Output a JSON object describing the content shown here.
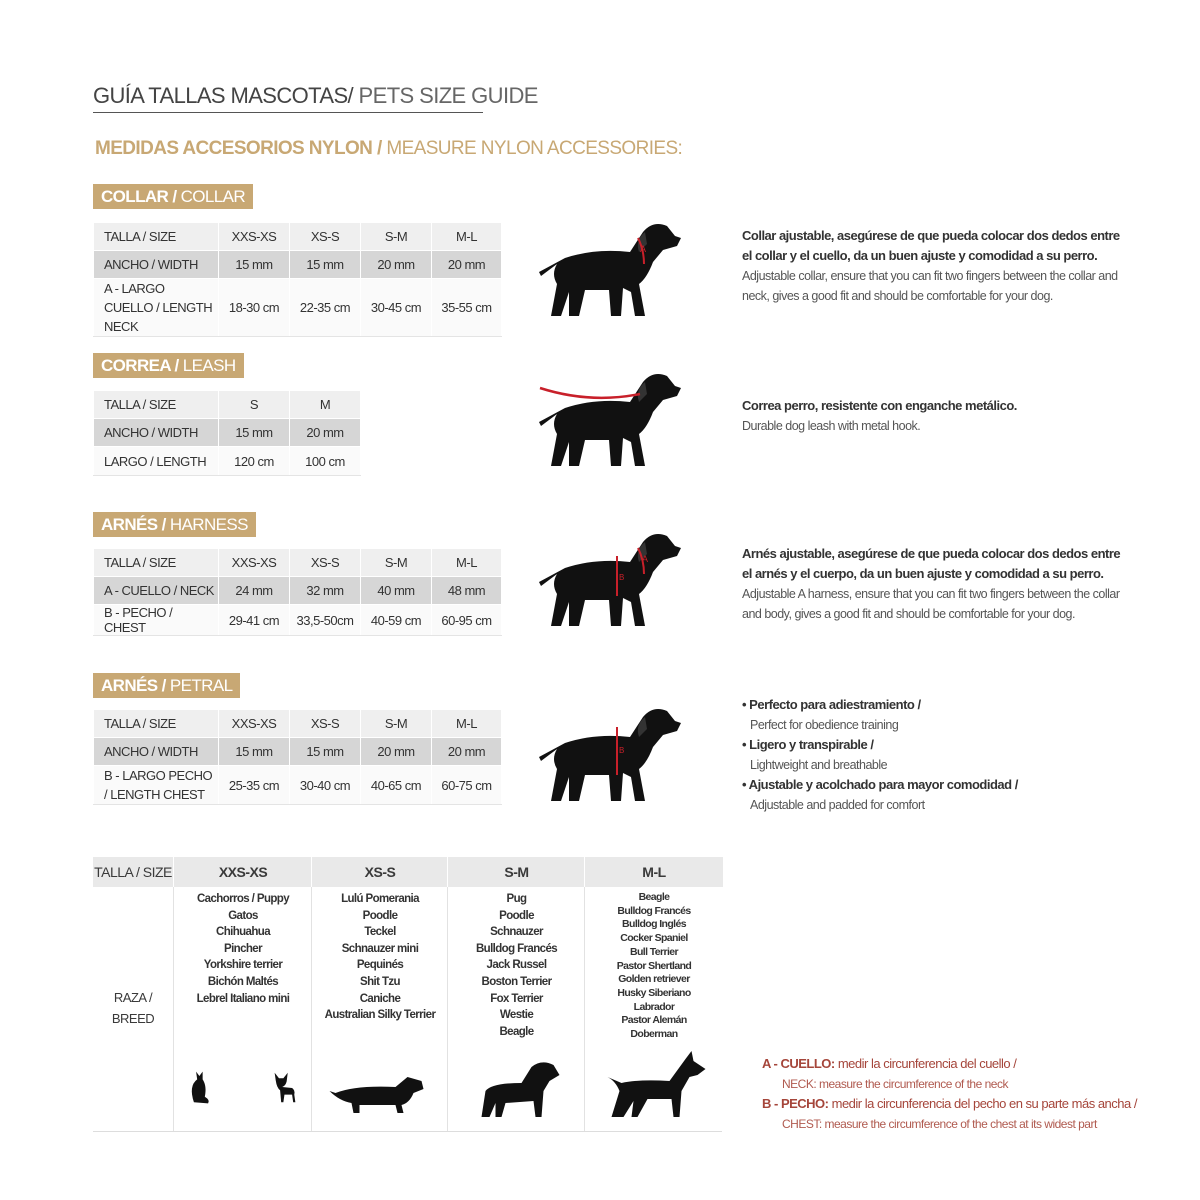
{
  "title": {
    "es": "GUÍA TALLAS MASCOTAS/",
    "en": " PETS SIZE GUIDE"
  },
  "subtitle": {
    "es": "MEDIDAS ACCESORIOS NYLON /",
    "en": " MEASURE NYLON ACCESSORIES:"
  },
  "colors": {
    "gold": "#c8a874",
    "red": "#a5453a",
    "silhouette": "#111111",
    "marker": "#c8202a"
  },
  "sections": [
    {
      "badge_es": "COLLAR /",
      "badge_en": " COLLAR",
      "rows": [
        [
          "TALLA / SIZE",
          "XXS-XS",
          "XS-S",
          "S-M",
          "M-L"
        ],
        [
          "ANCHO / WIDTH",
          "15 mm",
          "15 mm",
          "20 mm",
          "20 mm"
        ],
        [
          "A - LARGO CUELLO / LENGTH NECK",
          "18-30 cm",
          "22-35 cm",
          "30-45 cm",
          "35-55 cm"
        ]
      ],
      "description": {
        "bold": "Collar ajustable, asegúrese de que pueda colocar dos dedos entre el collar y el cuello, da un buen ajuste y comodidad a su perro.",
        "normal": "Adjustable collar, ensure that you can fit two fingers between the collar and neck, gives a good fit and should be comfortable for your dog."
      },
      "marker": "neck"
    },
    {
      "badge_es": "CORREA /",
      "badge_en": " LEASH",
      "rows": [
        [
          "TALLA / SIZE",
          "S",
          "M"
        ],
        [
          "ANCHO / WIDTH",
          "15 mm",
          "20 mm"
        ],
        [
          "LARGO / LENGTH",
          "120 cm",
          "100 cm"
        ]
      ],
      "description": {
        "bold": "Correa perro, resistente con enganche metálico.",
        "normal": "Durable dog leash with metal hook."
      },
      "marker": "leash"
    },
    {
      "badge_es": "ARNÉS /",
      "badge_en": " HARNESS",
      "rows": [
        [
          "TALLA / SIZE",
          "XXS-XS",
          "XS-S",
          "S-M",
          "M-L"
        ],
        [
          "A - CUELLO / NECK",
          "24 mm",
          "32 mm",
          "40 mm",
          "48 mm"
        ],
        [
          "B - PECHO / CHEST",
          "29-41 cm",
          "33,5-50cm",
          "40-59 cm",
          "60-95 cm"
        ]
      ],
      "description": {
        "bold": "Arnés ajustable, asegúrese de que pueda colocar dos dedos entre el arnés y el cuerpo, da un buen ajuste y comodidad a su perro.",
        "normal": "Adjustable A harness, ensure that you can fit two fingers between the collar and body, gives a good fit and should be comfortable for your dog."
      },
      "marker": "harness"
    },
    {
      "badge_es": "ARNÉS /",
      "badge_en": " PETRAL",
      "rows": [
        [
          "TALLA / SIZE",
          "XXS-XS",
          "XS-S",
          "S-M",
          "M-L"
        ],
        [
          "ANCHO / WIDTH",
          "15 mm",
          "15 mm",
          "20 mm",
          "20 mm"
        ],
        [
          "B - LARGO PECHO / LENGTH CHEST",
          "25-35 cm",
          "30-40 cm",
          "40-65 cm",
          "60-75 cm"
        ]
      ],
      "bullets": [
        {
          "bold": "• Perfecto para adiestramiento /",
          "normal": "Perfect for obedience training"
        },
        {
          "bold": "• Ligero y transpirable /",
          "normal": "Lightweight and breathable"
        },
        {
          "bold": "• Ajustable y acolchado para mayor comodidad /",
          "normal": "Adjustable and padded for comfort"
        }
      ],
      "marker": "chest"
    }
  ],
  "breed_table": {
    "header_label": "TALLA /  SIZE",
    "row_label": "RAZA / BREED",
    "sizes": [
      "XXS-XS",
      "XS-S",
      "S-M",
      "M-L"
    ],
    "breeds": [
      [
        "Cachorros / Puppy",
        "Gatos",
        "Chihuahua",
        "Pincher",
        "Yorkshire terrier",
        "Bichón Maltés",
        "Lebrel Italiano mini"
      ],
      [
        "Lulú Pomerania",
        "Poodle",
        "Teckel",
        "Schnauzer mini",
        "Pequinés",
        "Shit Tzu",
        "Caniche",
        "Australian Silky Terrier"
      ],
      [
        "Pug",
        "Poodle",
        "Schnauzer",
        "Bulldog Francés",
        "Jack Russel",
        "Boston Terrier",
        "Fox Terrier",
        "Westie",
        "Beagle"
      ],
      [
        "Beagle",
        "Bulldog Francés",
        "Bulldog Inglés",
        "Cocker Spaniel",
        "Bull Terrier",
        "Pastor Shertland",
        "Golden retriever",
        "Husky Siberiano",
        "Labrador",
        "Pastor Alemán",
        "Doberman"
      ]
    ],
    "illustrations": [
      [
        "cat-icon",
        "chihuahua-icon"
      ],
      [
        "dachshund-icon"
      ],
      [
        "schnauzer-icon"
      ],
      [
        "doberman-icon"
      ]
    ]
  },
  "legend": [
    {
      "bold": "A - CUELLO:",
      "text": " medir la circunferencia del cuello /",
      "en": "NECK: measure the circumference of the neck"
    },
    {
      "bold": "B - PECHO:",
      "text": " medir la circunferencia del pecho en su parte más ancha /",
      "en": "CHEST: measure the circumference of the chest at its widest part"
    }
  ]
}
